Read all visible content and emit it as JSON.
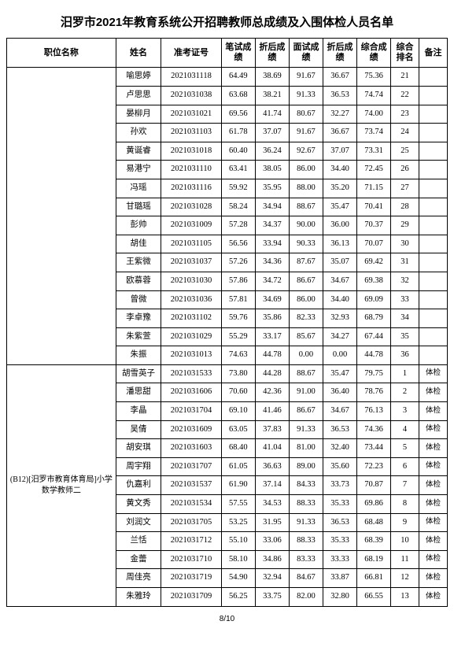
{
  "title": "汨罗市2021年教育系统公开招聘教师总成绩及入围体检人员名单",
  "pager": "8/10",
  "headers": {
    "position": "职位名称",
    "name": "姓名",
    "exam_id": "准考证号",
    "written": "笔试成绩",
    "written_adj": "折后成绩",
    "interview": "面试成绩",
    "interview_adj": "折后成绩",
    "total": "综合成绩",
    "rank": "综合排名",
    "note": "备注"
  },
  "group1": {
    "position": "",
    "rowspan": 16,
    "rows": [
      {
        "name": "喻思婷",
        "id": "2021031118",
        "s1": "64.49",
        "s2": "38.69",
        "s3": "91.67",
        "s4": "36.67",
        "s5": "75.36",
        "rank": "21",
        "note": ""
      },
      {
        "name": "卢思思",
        "id": "2021031038",
        "s1": "63.68",
        "s2": "38.21",
        "s3": "91.33",
        "s4": "36.53",
        "s5": "74.74",
        "rank": "22",
        "note": ""
      },
      {
        "name": "晏柳月",
        "id": "2021031021",
        "s1": "69.56",
        "s2": "41.74",
        "s3": "80.67",
        "s4": "32.27",
        "s5": "74.00",
        "rank": "23",
        "note": ""
      },
      {
        "name": "孙欢",
        "id": "2021031103",
        "s1": "61.78",
        "s2": "37.07",
        "s3": "91.67",
        "s4": "36.67",
        "s5": "73.74",
        "rank": "24",
        "note": ""
      },
      {
        "name": "黄诞睿",
        "id": "2021031018",
        "s1": "60.40",
        "s2": "36.24",
        "s3": "92.67",
        "s4": "37.07",
        "s5": "73.31",
        "rank": "25",
        "note": ""
      },
      {
        "name": "易港宁",
        "id": "2021031110",
        "s1": "63.41",
        "s2": "38.05",
        "s3": "86.00",
        "s4": "34.40",
        "s5": "72.45",
        "rank": "26",
        "note": ""
      },
      {
        "name": "冯瑶",
        "id": "2021031116",
        "s1": "59.92",
        "s2": "35.95",
        "s3": "88.00",
        "s4": "35.20",
        "s5": "71.15",
        "rank": "27",
        "note": ""
      },
      {
        "name": "甘璐瑶",
        "id": "2021031028",
        "s1": "58.24",
        "s2": "34.94",
        "s3": "88.67",
        "s4": "35.47",
        "s5": "70.41",
        "rank": "28",
        "note": ""
      },
      {
        "name": "彭帅",
        "id": "2021031009",
        "s1": "57.28",
        "s2": "34.37",
        "s3": "90.00",
        "s4": "36.00",
        "s5": "70.37",
        "rank": "29",
        "note": ""
      },
      {
        "name": "胡佳",
        "id": "2021031105",
        "s1": "56.56",
        "s2": "33.94",
        "s3": "90.33",
        "s4": "36.13",
        "s5": "70.07",
        "rank": "30",
        "note": ""
      },
      {
        "name": "王紫微",
        "id": "2021031037",
        "s1": "57.26",
        "s2": "34.36",
        "s3": "87.67",
        "s4": "35.07",
        "s5": "69.42",
        "rank": "31",
        "note": ""
      },
      {
        "name": "欧慕蓉",
        "id": "2021031030",
        "s1": "57.86",
        "s2": "34.72",
        "s3": "86.67",
        "s4": "34.67",
        "s5": "69.38",
        "rank": "32",
        "note": ""
      },
      {
        "name": "曾微",
        "id": "2021031036",
        "s1": "57.81",
        "s2": "34.69",
        "s3": "86.00",
        "s4": "34.40",
        "s5": "69.09",
        "rank": "33",
        "note": ""
      },
      {
        "name": "李卓豫",
        "id": "2021031102",
        "s1": "59.76",
        "s2": "35.86",
        "s3": "82.33",
        "s4": "32.93",
        "s5": "68.79",
        "rank": "34",
        "note": ""
      },
      {
        "name": "朱紫萱",
        "id": "2021031029",
        "s1": "55.29",
        "s2": "33.17",
        "s3": "85.67",
        "s4": "34.27",
        "s5": "67.44",
        "rank": "35",
        "note": ""
      },
      {
        "name": "朱振",
        "id": "2021031013",
        "s1": "74.63",
        "s2": "44.78",
        "s3": "0.00",
        "s4": "0.00",
        "s5": "44.78",
        "rank": "36",
        "note": ""
      }
    ]
  },
  "group2": {
    "position": "(B12)[汨罗市教育体育局]小学数学教师二",
    "rowspan": 13,
    "rows": [
      {
        "name": "胡雪英子",
        "id": "2021031533",
        "s1": "73.80",
        "s2": "44.28",
        "s3": "88.67",
        "s4": "35.47",
        "s5": "79.75",
        "rank": "1",
        "note": "体检"
      },
      {
        "name": "潘思甜",
        "id": "2021031606",
        "s1": "70.60",
        "s2": "42.36",
        "s3": "91.00",
        "s4": "36.40",
        "s5": "78.76",
        "rank": "2",
        "note": "体检"
      },
      {
        "name": "李晶",
        "id": "2021031704",
        "s1": "69.10",
        "s2": "41.46",
        "s3": "86.67",
        "s4": "34.67",
        "s5": "76.13",
        "rank": "3",
        "note": "体检"
      },
      {
        "name": "吴倩",
        "id": "2021031609",
        "s1": "63.05",
        "s2": "37.83",
        "s3": "91.33",
        "s4": "36.53",
        "s5": "74.36",
        "rank": "4",
        "note": "体检"
      },
      {
        "name": "胡安琪",
        "id": "2021031603",
        "s1": "68.40",
        "s2": "41.04",
        "s3": "81.00",
        "s4": "32.40",
        "s5": "73.44",
        "rank": "5",
        "note": "体检"
      },
      {
        "name": "周宇翔",
        "id": "2021031707",
        "s1": "61.05",
        "s2": "36.63",
        "s3": "89.00",
        "s4": "35.60",
        "s5": "72.23",
        "rank": "6",
        "note": "体检"
      },
      {
        "name": "仇嘉利",
        "id": "2021031537",
        "s1": "61.90",
        "s2": "37.14",
        "s3": "84.33",
        "s4": "33.73",
        "s5": "70.87",
        "rank": "7",
        "note": "体检"
      },
      {
        "name": "黄文秀",
        "id": "2021031534",
        "s1": "57.55",
        "s2": "34.53",
        "s3": "88.33",
        "s4": "35.33",
        "s5": "69.86",
        "rank": "8",
        "note": "体检"
      },
      {
        "name": "刘润文",
        "id": "2021031705",
        "s1": "53.25",
        "s2": "31.95",
        "s3": "91.33",
        "s4": "36.53",
        "s5": "68.48",
        "rank": "9",
        "note": "体检"
      },
      {
        "name": "兰恬",
        "id": "2021031712",
        "s1": "55.10",
        "s2": "33.06",
        "s3": "88.33",
        "s4": "35.33",
        "s5": "68.39",
        "rank": "10",
        "note": "体检"
      },
      {
        "name": "金蕾",
        "id": "2021031710",
        "s1": "58.10",
        "s2": "34.86",
        "s3": "83.33",
        "s4": "33.33",
        "s5": "68.19",
        "rank": "11",
        "note": "体检"
      },
      {
        "name": "周佳亮",
        "id": "2021031719",
        "s1": "54.90",
        "s2": "32.94",
        "s3": "84.67",
        "s4": "33.87",
        "s5": "66.81",
        "rank": "12",
        "note": "体检"
      },
      {
        "name": "朱雅玲",
        "id": "2021031709",
        "s1": "56.25",
        "s2": "33.75",
        "s3": "82.00",
        "s4": "32.80",
        "s5": "66.55",
        "rank": "13",
        "note": "体检"
      }
    ]
  }
}
